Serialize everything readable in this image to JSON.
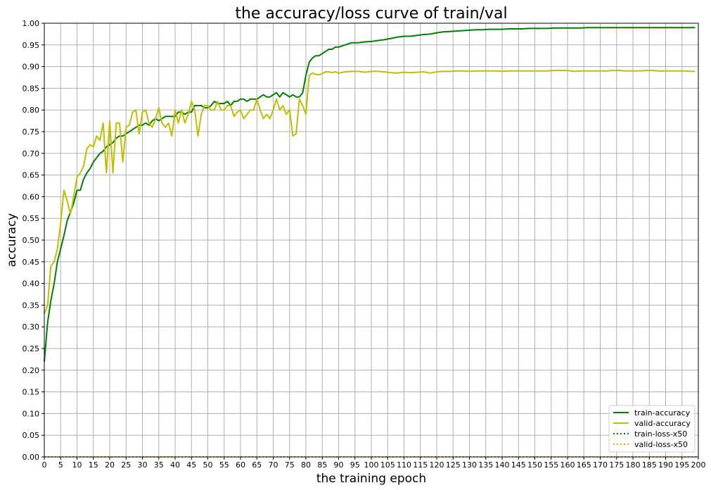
{
  "chart_data": {
    "type": "line",
    "title": "the accuracy/loss curve of train/val",
    "xlabel": "the training epoch",
    "ylabel": "accuracy",
    "xlim": [
      0,
      200
    ],
    "ylim": [
      0,
      1
    ],
    "x_ticks": [
      0,
      5,
      10,
      15,
      20,
      25,
      30,
      35,
      40,
      45,
      50,
      55,
      60,
      65,
      70,
      75,
      80,
      85,
      90,
      95,
      100,
      105,
      110,
      115,
      120,
      125,
      130,
      135,
      140,
      145,
      150,
      155,
      160,
      165,
      170,
      175,
      180,
      185,
      190,
      195,
      200
    ],
    "y_ticks": [
      "0.00",
      "0.05",
      "0.10",
      "0.15",
      "0.20",
      "0.25",
      "0.30",
      "0.35",
      "0.40",
      "0.45",
      "0.50",
      "0.55",
      "0.60",
      "0.65",
      "0.70",
      "0.75",
      "0.80",
      "0.85",
      "0.90",
      "0.95",
      "1.00"
    ],
    "grid": true,
    "legend_position": "lower-right",
    "series": [
      {
        "name": "train-accuracy",
        "color": "#008000",
        "style": "solid",
        "x": [
          0,
          1,
          2,
          3,
          4,
          5,
          6,
          7,
          8,
          9,
          10,
          11,
          12,
          13,
          14,
          15,
          16,
          17,
          18,
          19,
          20,
          21,
          22,
          23,
          24,
          25,
          26,
          27,
          28,
          29,
          30,
          31,
          32,
          33,
          34,
          35,
          36,
          37,
          38,
          39,
          40,
          41,
          42,
          43,
          44,
          45,
          46,
          47,
          48,
          49,
          50,
          51,
          52,
          53,
          54,
          55,
          56,
          57,
          58,
          59,
          60,
          61,
          62,
          63,
          64,
          65,
          66,
          67,
          68,
          69,
          70,
          71,
          72,
          73,
          74,
          75,
          76,
          77,
          78,
          79,
          80,
          81,
          82,
          83,
          84,
          85,
          86,
          87,
          88,
          89,
          90,
          92,
          94,
          96,
          98,
          100,
          102,
          104,
          106,
          108,
          110,
          112,
          114,
          116,
          118,
          120,
          122,
          124,
          126,
          128,
          130,
          132,
          134,
          136,
          138,
          140,
          142,
          144,
          146,
          148,
          150,
          152,
          154,
          156,
          158,
          160,
          162,
          164,
          166,
          168,
          170,
          172,
          174,
          176,
          178,
          180,
          182,
          184,
          186,
          188,
          190,
          192,
          194,
          196,
          198,
          199
        ],
        "y": [
          0.22,
          0.31,
          0.36,
          0.4,
          0.45,
          0.48,
          0.51,
          0.545,
          0.565,
          0.585,
          0.615,
          0.615,
          0.64,
          0.655,
          0.665,
          0.68,
          0.69,
          0.7,
          0.705,
          0.715,
          0.72,
          0.725,
          0.735,
          0.74,
          0.74,
          0.745,
          0.75,
          0.755,
          0.76,
          0.765,
          0.765,
          0.77,
          0.765,
          0.775,
          0.78,
          0.775,
          0.78,
          0.785,
          0.785,
          0.785,
          0.785,
          0.795,
          0.795,
          0.79,
          0.795,
          0.795,
          0.81,
          0.81,
          0.81,
          0.805,
          0.805,
          0.81,
          0.82,
          0.815,
          0.815,
          0.815,
          0.82,
          0.81,
          0.82,
          0.82,
          0.825,
          0.825,
          0.82,
          0.825,
          0.825,
          0.825,
          0.83,
          0.835,
          0.83,
          0.83,
          0.835,
          0.84,
          0.83,
          0.84,
          0.835,
          0.83,
          0.835,
          0.83,
          0.83,
          0.84,
          0.88,
          0.91,
          0.92,
          0.925,
          0.925,
          0.93,
          0.935,
          0.94,
          0.94,
          0.945,
          0.945,
          0.95,
          0.955,
          0.955,
          0.957,
          0.958,
          0.96,
          0.962,
          0.965,
          0.968,
          0.97,
          0.97,
          0.972,
          0.974,
          0.975,
          0.978,
          0.98,
          0.981,
          0.982,
          0.983,
          0.984,
          0.985,
          0.985,
          0.986,
          0.986,
          0.986,
          0.987,
          0.987,
          0.987,
          0.988,
          0.988,
          0.988,
          0.988,
          0.989,
          0.989,
          0.989,
          0.989,
          0.989,
          0.99,
          0.99,
          0.99,
          0.99,
          0.99,
          0.99,
          0.99,
          0.99,
          0.99,
          0.99,
          0.99,
          0.99,
          0.99,
          0.99,
          0.99,
          0.99,
          0.99,
          0.99
        ]
      },
      {
        "name": "valid-accuracy",
        "color": "#bfbf00",
        "style": "solid",
        "x": [
          0,
          1,
          2,
          3,
          4,
          5,
          6,
          7,
          8,
          9,
          10,
          11,
          12,
          13,
          14,
          15,
          16,
          17,
          18,
          19,
          20,
          21,
          22,
          23,
          24,
          25,
          26,
          27,
          28,
          29,
          30,
          31,
          32,
          33,
          34,
          35,
          36,
          37,
          38,
          39,
          40,
          41,
          42,
          43,
          44,
          45,
          46,
          47,
          48,
          49,
          50,
          51,
          52,
          53,
          54,
          55,
          56,
          57,
          58,
          59,
          60,
          61,
          62,
          63,
          64,
          65,
          66,
          67,
          68,
          69,
          70,
          71,
          72,
          73,
          74,
          75,
          76,
          77,
          78,
          79,
          80,
          81,
          82,
          83,
          84,
          85,
          86,
          87,
          88,
          89,
          90,
          92,
          94,
          96,
          98,
          100,
          102,
          104,
          106,
          108,
          110,
          112,
          114,
          116,
          118,
          120,
          122,
          124,
          126,
          128,
          130,
          132,
          134,
          136,
          138,
          140,
          142,
          144,
          146,
          148,
          150,
          152,
          154,
          156,
          158,
          160,
          162,
          164,
          166,
          168,
          170,
          172,
          174,
          176,
          178,
          180,
          182,
          184,
          186,
          188,
          190,
          192,
          194,
          196,
          198,
          199
        ],
        "y": [
          0.33,
          0.35,
          0.44,
          0.45,
          0.48,
          0.54,
          0.615,
          0.59,
          0.56,
          0.6,
          0.645,
          0.655,
          0.67,
          0.71,
          0.72,
          0.715,
          0.74,
          0.73,
          0.77,
          0.655,
          0.775,
          0.655,
          0.77,
          0.77,
          0.68,
          0.76,
          0.765,
          0.795,
          0.8,
          0.745,
          0.795,
          0.8,
          0.77,
          0.76,
          0.78,
          0.805,
          0.77,
          0.76,
          0.77,
          0.74,
          0.8,
          0.77,
          0.8,
          0.77,
          0.79,
          0.82,
          0.8,
          0.74,
          0.79,
          0.81,
          0.81,
          0.8,
          0.8,
          0.82,
          0.8,
          0.8,
          0.81,
          0.81,
          0.785,
          0.795,
          0.8,
          0.78,
          0.79,
          0.8,
          0.8,
          0.825,
          0.8,
          0.78,
          0.79,
          0.78,
          0.8,
          0.825,
          0.8,
          0.81,
          0.79,
          0.8,
          0.74,
          0.745,
          0.825,
          0.81,
          0.79,
          0.88,
          0.885,
          0.882,
          0.881,
          0.884,
          0.888,
          0.888,
          0.886,
          0.888,
          0.885,
          0.888,
          0.889,
          0.889,
          0.887,
          0.889,
          0.889,
          0.888,
          0.886,
          0.885,
          0.887,
          0.886,
          0.887,
          0.888,
          0.885,
          0.888,
          0.889,
          0.889,
          0.89,
          0.89,
          0.889,
          0.89,
          0.89,
          0.89,
          0.89,
          0.889,
          0.89,
          0.89,
          0.89,
          0.89,
          0.89,
          0.89,
          0.89,
          0.891,
          0.891,
          0.891,
          0.889,
          0.89,
          0.89,
          0.89,
          0.89,
          0.89,
          0.891,
          0.891,
          0.89,
          0.89,
          0.89,
          0.891,
          0.891,
          0.89,
          0.89,
          0.89,
          0.89,
          0.89,
          0.889,
          0.889
        ]
      },
      {
        "name": "train-loss-x50",
        "color": "#008000",
        "style": "dotted",
        "x": [
          0,
          200
        ],
        "y": [
          0.0,
          0.0
        ]
      },
      {
        "name": "valid-loss-x50",
        "color": "#e0b000",
        "style": "dotted",
        "x": [
          0,
          200
        ],
        "y": [
          0.0,
          0.0
        ]
      }
    ]
  }
}
